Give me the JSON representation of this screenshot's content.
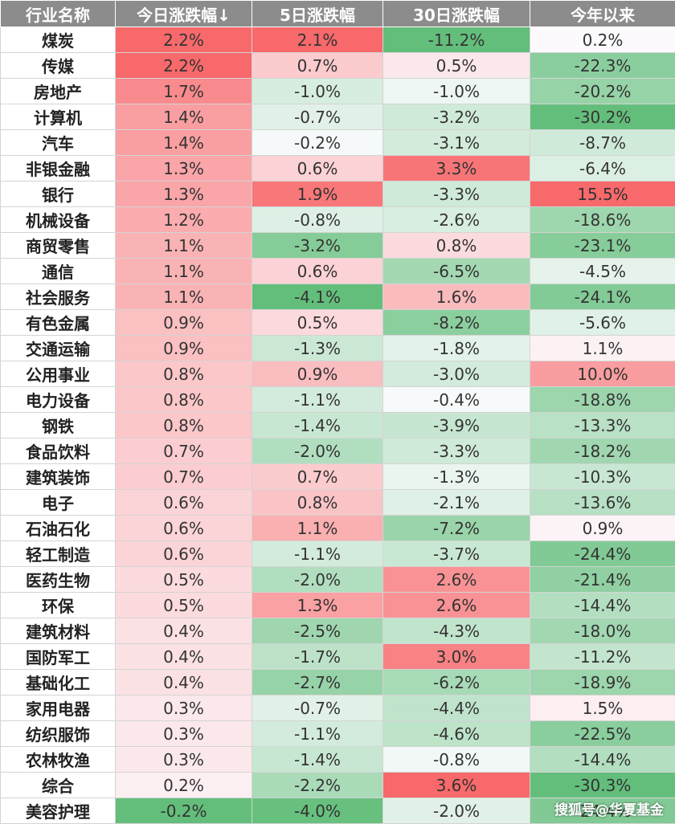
{
  "chart_data": {
    "type": "table",
    "columns": [
      "行业名称",
      "今日涨跌幅↓",
      "5日涨跌幅",
      "30日涨跌幅",
      "今年以来"
    ],
    "rows": [
      {
        "name": "煤炭",
        "d1": "2.2%",
        "d5": "2.1%",
        "d30": "-11.2%",
        "ytd": "0.2%"
      },
      {
        "name": "传媒",
        "d1": "2.2%",
        "d5": "0.7%",
        "d30": "0.5%",
        "ytd": "-22.3%"
      },
      {
        "name": "房地产",
        "d1": "1.7%",
        "d5": "-1.0%",
        "d30": "-1.0%",
        "ytd": "-20.2%"
      },
      {
        "name": "计算机",
        "d1": "1.4%",
        "d5": "-0.7%",
        "d30": "-3.2%",
        "ytd": "-30.2%"
      },
      {
        "name": "汽车",
        "d1": "1.4%",
        "d5": "-0.2%",
        "d30": "-3.1%",
        "ytd": "-8.7%"
      },
      {
        "name": "非银金融",
        "d1": "1.3%",
        "d5": "0.6%",
        "d30": "3.3%",
        "ytd": "-6.4%"
      },
      {
        "name": "银行",
        "d1": "1.3%",
        "d5": "1.9%",
        "d30": "-3.3%",
        "ytd": "15.5%"
      },
      {
        "name": "机械设备",
        "d1": "1.2%",
        "d5": "-0.8%",
        "d30": "-2.6%",
        "ytd": "-18.6%"
      },
      {
        "name": "商贸零售",
        "d1": "1.1%",
        "d5": "-3.2%",
        "d30": "0.8%",
        "ytd": "-23.1%"
      },
      {
        "name": "通信",
        "d1": "1.1%",
        "d5": "0.6%",
        "d30": "-6.5%",
        "ytd": "-4.5%"
      },
      {
        "name": "社会服务",
        "d1": "1.1%",
        "d5": "-4.1%",
        "d30": "1.6%",
        "ytd": "-24.1%"
      },
      {
        "name": "有色金属",
        "d1": "0.9%",
        "d5": "0.5%",
        "d30": "-8.2%",
        "ytd": "-5.6%"
      },
      {
        "name": "交通运输",
        "d1": "0.9%",
        "d5": "-1.3%",
        "d30": "-1.8%",
        "ytd": "1.1%"
      },
      {
        "name": "公用事业",
        "d1": "0.8%",
        "d5": "0.9%",
        "d30": "-3.0%",
        "ytd": "10.0%"
      },
      {
        "name": "电力设备",
        "d1": "0.8%",
        "d5": "-1.1%",
        "d30": "-0.4%",
        "ytd": "-18.8%"
      },
      {
        "name": "钢铁",
        "d1": "0.8%",
        "d5": "-1.4%",
        "d30": "-3.9%",
        "ytd": "-13.3%"
      },
      {
        "name": "食品饮料",
        "d1": "0.7%",
        "d5": "-2.0%",
        "d30": "-3.3%",
        "ytd": "-18.2%"
      },
      {
        "name": "建筑装饰",
        "d1": "0.7%",
        "d5": "0.7%",
        "d30": "-1.3%",
        "ytd": "-10.3%"
      },
      {
        "name": "电子",
        "d1": "0.6%",
        "d5": "0.8%",
        "d30": "-2.1%",
        "ytd": "-13.6%"
      },
      {
        "name": "石油石化",
        "d1": "0.6%",
        "d5": "1.1%",
        "d30": "-7.2%",
        "ytd": "0.9%"
      },
      {
        "name": "轻工制造",
        "d1": "0.6%",
        "d5": "-1.1%",
        "d30": "-3.7%",
        "ytd": "-24.4%"
      },
      {
        "name": "医药生物",
        "d1": "0.5%",
        "d5": "-2.0%",
        "d30": "2.6%",
        "ytd": "-21.4%"
      },
      {
        "name": "环保",
        "d1": "0.5%",
        "d5": "1.3%",
        "d30": "2.6%",
        "ytd": "-14.4%"
      },
      {
        "name": "建筑材料",
        "d1": "0.4%",
        "d5": "-2.5%",
        "d30": "-4.3%",
        "ytd": "-18.0%"
      },
      {
        "name": "国防军工",
        "d1": "0.4%",
        "d5": "-1.7%",
        "d30": "3.0%",
        "ytd": "-11.2%"
      },
      {
        "name": "基础化工",
        "d1": "0.4%",
        "d5": "-2.7%",
        "d30": "-6.2%",
        "ytd": "-18.9%"
      },
      {
        "name": "家用电器",
        "d1": "0.3%",
        "d5": "-0.7%",
        "d30": "-4.4%",
        "ytd": "1.5%"
      },
      {
        "name": "纺织服饰",
        "d1": "0.3%",
        "d5": "-1.1%",
        "d30": "-4.6%",
        "ytd": "-22.5%"
      },
      {
        "name": "农林牧渔",
        "d1": "0.3%",
        "d5": "-1.4%",
        "d30": "-0.8%",
        "ytd": "-14.4%"
      },
      {
        "name": "综合",
        "d1": "0.2%",
        "d5": "-2.2%",
        "d30": "3.6%",
        "ytd": "-30.3%"
      },
      {
        "name": "美容护理",
        "d1": "-0.2%",
        "d5": "-4.0%",
        "d30": "-2.0%",
        "ytd": "-24.4%"
      }
    ],
    "color_scale": {
      "positive": "#f8696b",
      "neutral": "#fcfcff",
      "negative": "#63be7b"
    }
  },
  "watermark": "搜狐号@华夏基金"
}
